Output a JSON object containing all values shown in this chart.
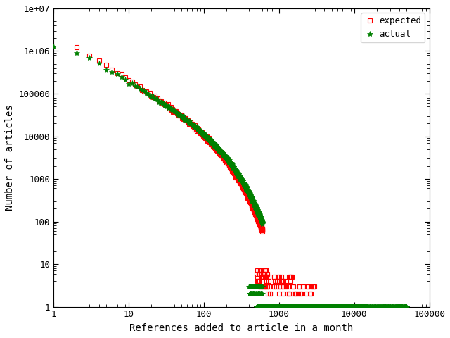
{
  "title": "",
  "xlabel": "References added to article in a month",
  "ylabel": "Number of articles",
  "background_color": "#ffffff",
  "legend_expected": "expected",
  "legend_actual": "actual",
  "expected_color": "#ff0000",
  "actual_color": "#008000",
  "xlim": [
    1,
    100000
  ],
  "ylim": [
    1,
    10000000.0
  ],
  "marker_expected": "s",
  "marker_actual": "*",
  "markersize_expected": 4,
  "markersize_actual": 6
}
